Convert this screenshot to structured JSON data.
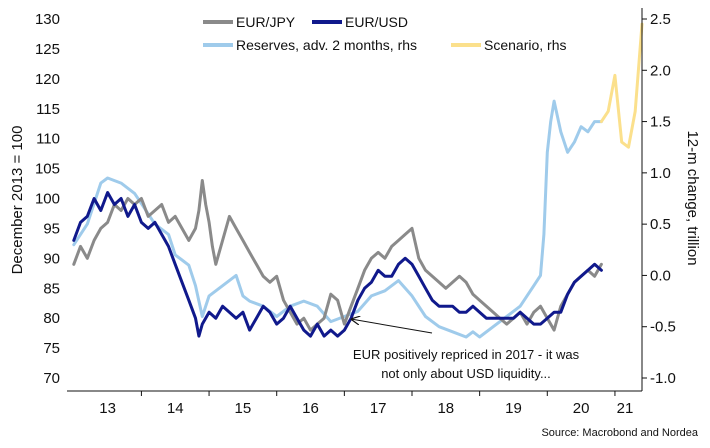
{
  "chart_data": {
    "type": "line",
    "title": "",
    "y_left": {
      "label": "December 2013 = 100",
      "min": 70,
      "max": 130,
      "ticks": [
        70,
        75,
        80,
        85,
        90,
        95,
        100,
        105,
        110,
        115,
        120,
        125,
        130
      ]
    },
    "y_right": {
      "label": "12-m change, trillion",
      "min": -1.0,
      "max": 2.5,
      "ticks": [
        -1.0,
        -0.5,
        0.0,
        0.5,
        1.0,
        1.5,
        2.0,
        2.5
      ]
    },
    "x_axis": {
      "min": 2012.9,
      "max": 2021.4,
      "tick_labels": [
        "13",
        "14",
        "15",
        "16",
        "17",
        "18",
        "19",
        "20",
        "21"
      ],
      "tick_positions": [
        2013.5,
        2014.5,
        2015.5,
        2016.5,
        2017.5,
        2018.5,
        2019.5,
        2020.5,
        2021.5
      ]
    },
    "legend_placement": "top-center",
    "grid": false,
    "series": [
      {
        "name": "EUR/JPY",
        "axis": "left",
        "color": "#8a8a8a",
        "points": [
          [
            2013.0,
            89
          ],
          [
            2013.1,
            92
          ],
          [
            2013.2,
            90
          ],
          [
            2013.3,
            93
          ],
          [
            2013.4,
            95
          ],
          [
            2013.5,
            96
          ],
          [
            2013.6,
            99
          ],
          [
            2013.7,
            98
          ],
          [
            2013.8,
            100
          ],
          [
            2013.9,
            99
          ],
          [
            2014.0,
            100
          ],
          [
            2014.1,
            97
          ],
          [
            2014.2,
            98
          ],
          [
            2014.3,
            99
          ],
          [
            2014.4,
            96
          ],
          [
            2014.5,
            97
          ],
          [
            2014.6,
            95
          ],
          [
            2014.7,
            93
          ],
          [
            2014.8,
            95
          ],
          [
            2014.85,
            98
          ],
          [
            2014.9,
            103
          ],
          [
            2014.95,
            99
          ],
          [
            2015.0,
            96
          ],
          [
            2015.05,
            92
          ],
          [
            2015.1,
            89
          ],
          [
            2015.2,
            93
          ],
          [
            2015.3,
            97
          ],
          [
            2015.4,
            95
          ],
          [
            2015.5,
            93
          ],
          [
            2015.6,
            91
          ],
          [
            2015.7,
            89
          ],
          [
            2015.8,
            87
          ],
          [
            2015.9,
            86
          ],
          [
            2016.0,
            87
          ],
          [
            2016.1,
            83
          ],
          [
            2016.2,
            81
          ],
          [
            2016.3,
            79
          ],
          [
            2016.4,
            80
          ],
          [
            2016.5,
            78
          ],
          [
            2016.6,
            79
          ],
          [
            2016.7,
            80
          ],
          [
            2016.8,
            84
          ],
          [
            2016.9,
            83
          ],
          [
            2017.0,
            79
          ],
          [
            2017.1,
            82
          ],
          [
            2017.2,
            85
          ],
          [
            2017.3,
            88
          ],
          [
            2017.4,
            90
          ],
          [
            2017.5,
            91
          ],
          [
            2017.6,
            90
          ],
          [
            2017.7,
            92
          ],
          [
            2017.8,
            93
          ],
          [
            2017.9,
            94
          ],
          [
            2018.0,
            95
          ],
          [
            2018.1,
            90
          ],
          [
            2018.2,
            88
          ],
          [
            2018.3,
            87
          ],
          [
            2018.4,
            86
          ],
          [
            2018.5,
            85
          ],
          [
            2018.6,
            86
          ],
          [
            2018.7,
            87
          ],
          [
            2018.8,
            86
          ],
          [
            2018.9,
            84
          ],
          [
            2019.0,
            83
          ],
          [
            2019.1,
            82
          ],
          [
            2019.2,
            81
          ],
          [
            2019.3,
            80
          ],
          [
            2019.4,
            79
          ],
          [
            2019.5,
            80
          ],
          [
            2019.6,
            81
          ],
          [
            2019.7,
            79
          ],
          [
            2019.8,
            81
          ],
          [
            2019.9,
            82
          ],
          [
            2020.0,
            80
          ],
          [
            2020.1,
            78
          ],
          [
            2020.2,
            82
          ],
          [
            2020.3,
            84
          ],
          [
            2020.4,
            86
          ],
          [
            2020.5,
            87
          ],
          [
            2020.6,
            88
          ],
          [
            2020.7,
            87
          ],
          [
            2020.8,
            89
          ]
        ]
      },
      {
        "name": "EUR/USD",
        "axis": "left",
        "color": "#10198c",
        "points": [
          [
            2013.0,
            93
          ],
          [
            2013.1,
            96
          ],
          [
            2013.2,
            97
          ],
          [
            2013.3,
            100
          ],
          [
            2013.4,
            98
          ],
          [
            2013.5,
            101
          ],
          [
            2013.6,
            99
          ],
          [
            2013.7,
            100
          ],
          [
            2013.8,
            97
          ],
          [
            2013.9,
            99
          ],
          [
            2014.0,
            96
          ],
          [
            2014.1,
            95
          ],
          [
            2014.2,
            96
          ],
          [
            2014.3,
            94
          ],
          [
            2014.4,
            92
          ],
          [
            2014.5,
            89
          ],
          [
            2014.6,
            86
          ],
          [
            2014.7,
            83
          ],
          [
            2014.8,
            80
          ],
          [
            2014.85,
            77
          ],
          [
            2014.9,
            79
          ],
          [
            2015.0,
            81
          ],
          [
            2015.1,
            80
          ],
          [
            2015.2,
            82
          ],
          [
            2015.3,
            81
          ],
          [
            2015.4,
            80
          ],
          [
            2015.5,
            81
          ],
          [
            2015.6,
            78
          ],
          [
            2015.7,
            80
          ],
          [
            2015.8,
            82
          ],
          [
            2015.9,
            81
          ],
          [
            2016.0,
            79
          ],
          [
            2016.1,
            80
          ],
          [
            2016.2,
            82
          ],
          [
            2016.3,
            80
          ],
          [
            2016.4,
            78
          ],
          [
            2016.5,
            77
          ],
          [
            2016.6,
            79
          ],
          [
            2016.7,
            77
          ],
          [
            2016.8,
            78
          ],
          [
            2016.9,
            77
          ],
          [
            2017.0,
            78
          ],
          [
            2017.1,
            80
          ],
          [
            2017.2,
            83
          ],
          [
            2017.3,
            85
          ],
          [
            2017.4,
            86
          ],
          [
            2017.5,
            88
          ],
          [
            2017.6,
            87
          ],
          [
            2017.7,
            87
          ],
          [
            2017.8,
            89
          ],
          [
            2017.9,
            90
          ],
          [
            2018.0,
            89
          ],
          [
            2018.1,
            87
          ],
          [
            2018.2,
            85
          ],
          [
            2018.3,
            83
          ],
          [
            2018.4,
            82
          ],
          [
            2018.5,
            82
          ],
          [
            2018.6,
            82
          ],
          [
            2018.7,
            81
          ],
          [
            2018.8,
            81
          ],
          [
            2018.9,
            82
          ],
          [
            2019.0,
            81
          ],
          [
            2019.1,
            80
          ],
          [
            2019.2,
            80
          ],
          [
            2019.3,
            80
          ],
          [
            2019.4,
            80
          ],
          [
            2019.5,
            80
          ],
          [
            2019.6,
            81
          ],
          [
            2019.7,
            80
          ],
          [
            2019.8,
            79
          ],
          [
            2019.9,
            79
          ],
          [
            2020.0,
            80
          ],
          [
            2020.1,
            81
          ],
          [
            2020.2,
            81
          ],
          [
            2020.3,
            84
          ],
          [
            2020.4,
            86
          ],
          [
            2020.5,
            87
          ],
          [
            2020.6,
            88
          ],
          [
            2020.7,
            89
          ],
          [
            2020.8,
            88
          ]
        ]
      },
      {
        "name": "Reserves, adv. 2 months, rhs",
        "axis": "right",
        "color": "#9fcbeb",
        "points": [
          [
            2013.0,
            0.3
          ],
          [
            2013.2,
            0.5
          ],
          [
            2013.4,
            0.9
          ],
          [
            2013.5,
            0.95
          ],
          [
            2013.7,
            0.9
          ],
          [
            2013.9,
            0.8
          ],
          [
            2014.0,
            0.7
          ],
          [
            2014.2,
            0.5
          ],
          [
            2014.4,
            0.4
          ],
          [
            2014.5,
            0.2
          ],
          [
            2014.6,
            0.15
          ],
          [
            2014.7,
            0.1
          ],
          [
            2014.8,
            -0.1
          ],
          [
            2014.9,
            -0.4
          ],
          [
            2015.0,
            -0.2
          ],
          [
            2015.2,
            -0.1
          ],
          [
            2015.4,
            0.0
          ],
          [
            2015.5,
            -0.2
          ],
          [
            2015.6,
            -0.25
          ],
          [
            2015.8,
            -0.3
          ],
          [
            2016.0,
            -0.4
          ],
          [
            2016.2,
            -0.3
          ],
          [
            2016.4,
            -0.25
          ],
          [
            2016.6,
            -0.3
          ],
          [
            2016.8,
            -0.45
          ],
          [
            2017.0,
            -0.4
          ],
          [
            2017.2,
            -0.35
          ],
          [
            2017.4,
            -0.2
          ],
          [
            2017.6,
            -0.15
          ],
          [
            2017.8,
            -0.05
          ],
          [
            2018.0,
            -0.2
          ],
          [
            2018.2,
            -0.4
          ],
          [
            2018.4,
            -0.5
          ],
          [
            2018.6,
            -0.55
          ],
          [
            2018.8,
            -0.6
          ],
          [
            2018.9,
            -0.55
          ],
          [
            2019.0,
            -0.6
          ],
          [
            2019.2,
            -0.5
          ],
          [
            2019.4,
            -0.4
          ],
          [
            2019.6,
            -0.3
          ],
          [
            2019.8,
            -0.1
          ],
          [
            2019.9,
            0.0
          ],
          [
            2019.95,
            0.4
          ],
          [
            2020.0,
            1.2
          ],
          [
            2020.05,
            1.5
          ],
          [
            2020.1,
            1.7
          ],
          [
            2020.2,
            1.4
          ],
          [
            2020.3,
            1.2
          ],
          [
            2020.4,
            1.3
          ],
          [
            2020.5,
            1.45
          ],
          [
            2020.6,
            1.4
          ],
          [
            2020.7,
            1.5
          ],
          [
            2020.8,
            1.5
          ]
        ]
      },
      {
        "name": "Scenario, rhs",
        "axis": "right",
        "color": "#fbe08c",
        "points": [
          [
            2020.8,
            1.5
          ],
          [
            2020.9,
            1.6
          ],
          [
            2021.0,
            1.95
          ],
          [
            2021.1,
            1.3
          ],
          [
            2021.2,
            1.25
          ],
          [
            2021.3,
            1.6
          ],
          [
            2021.4,
            2.45
          ]
        ]
      }
    ],
    "annotation": {
      "text_line1": "EUR positively repriced in 2017 - it was",
      "text_line2": "not only about USD liquidity...",
      "target_x": 2017.05,
      "target_y": 80
    },
    "source": "Source: Macrobond and Nordea"
  }
}
